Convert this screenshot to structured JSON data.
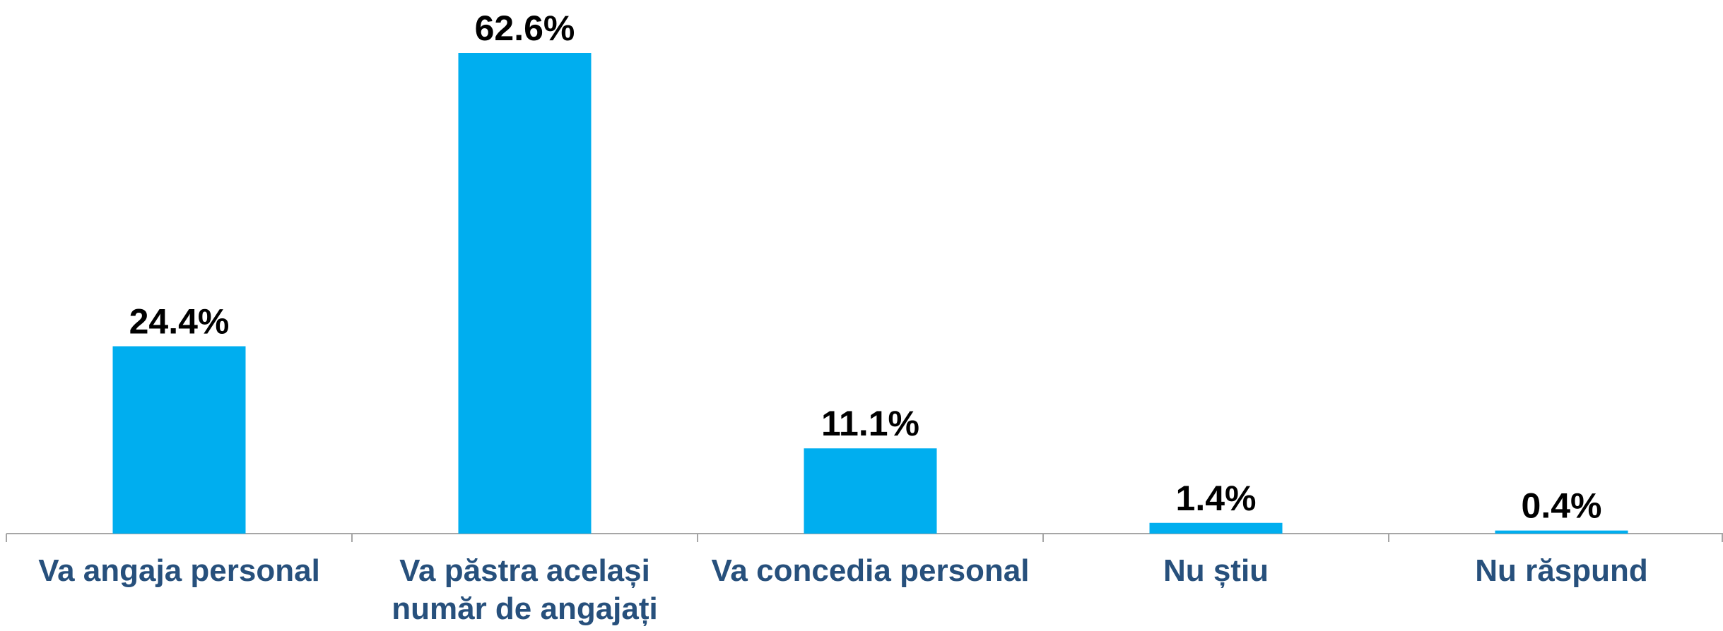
{
  "chart_data": {
    "type": "bar",
    "categories": [
      "Va angaja personal",
      "Va păstra același număr de angajați",
      "Va concedia personal",
      "Nu știu",
      "Nu răspund"
    ],
    "values": [
      24.4,
      62.6,
      11.1,
      1.4,
      0.4
    ],
    "value_labels": [
      "24.4%",
      "62.6%",
      "11.1%",
      "1.4%",
      "0.4%"
    ],
    "color": "#00aeef"
  }
}
